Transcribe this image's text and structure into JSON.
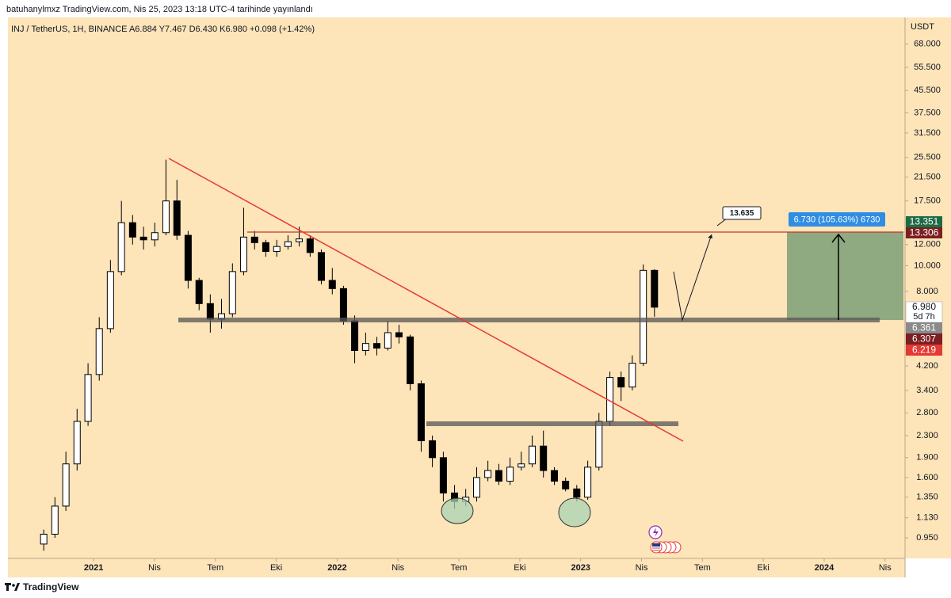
{
  "header": "batuhanylmxz TradingView.com, Nis 25, 2023 13:18 UTC-4 tarihinde yayınlandı",
  "footer": "TradingView",
  "chart_data": {
    "type": "candlestick",
    "title": "INJ / TetherUS, 1H, BINANCE  A6.884  Y7.467  D6.430  K6.980  +0.098 (+1.42%)",
    "currency": "USDT",
    "log_scale": true,
    "up_color": "#ffffff",
    "down_color": "#000000",
    "x": [
      2020.795,
      2020.841,
      2020.886,
      2020.932,
      2020.977,
      2021.023,
      2021.069,
      2021.114,
      2021.16,
      2021.205,
      2021.251,
      2021.297,
      2021.342,
      2021.388,
      2021.433,
      2021.479,
      2021.525,
      2021.57,
      2021.616,
      2021.661,
      2021.707,
      2021.752,
      2021.798,
      2021.844,
      2021.889,
      2021.935,
      2021.98,
      2022.026,
      2022.072,
      2022.117,
      2022.163,
      2022.208,
      2022.254,
      2022.3,
      2022.345,
      2022.391,
      2022.436,
      2022.482,
      2022.528,
      2022.573,
      2022.619,
      2022.664,
      2022.71,
      2022.756,
      2022.801,
      2022.847,
      2022.892,
      2022.938,
      2022.984,
      2023.029,
      2023.075,
      2023.12,
      2023.166,
      2023.212,
      2023.257,
      2023.303
    ],
    "open": [
      0.9,
      0.98,
      1.25,
      1.8,
      2.6,
      3.9,
      5.8,
      9.5,
      14.5,
      12.8,
      12.5,
      13.3,
      17.5,
      13.0,
      8.8,
      7.2,
      6.3,
      6.6,
      9.5,
      12.8,
      12.2,
      11.3,
      11.8,
      12.3,
      12.6,
      11.2,
      8.8,
      8.2,
      6.2,
      4.8,
      5.1,
      4.9,
      5.6,
      5.4,
      3.6,
      2.2,
      1.9,
      1.4,
      1.3,
      1.35,
      1.6,
      1.7,
      1.55,
      1.75,
      1.8,
      2.1,
      1.7,
      1.55,
      1.45,
      1.35,
      1.75,
      2.6,
      3.8,
      3.5,
      4.3,
      9.6
    ],
    "high": [
      1.02,
      1.35,
      2.0,
      2.9,
      4.3,
      6.4,
      10.5,
      17.5,
      15.5,
      14.0,
      14.5,
      25.0,
      21.0,
      13.5,
      9.0,
      7.8,
      7.5,
      10.2,
      16.5,
      13.5,
      12.5,
      12.5,
      13.0,
      14.0,
      13.0,
      11.5,
      9.8,
      8.4,
      6.5,
      5.6,
      5.4,
      6.2,
      6.0,
      5.5,
      3.7,
      2.3,
      2.0,
      1.5,
      1.45,
      1.75,
      1.85,
      1.8,
      1.9,
      2.0,
      2.3,
      2.4,
      1.75,
      1.6,
      1.5,
      1.85,
      2.8,
      4.0,
      4.0,
      4.6,
      10.1,
      9.7
    ],
    "low": [
      0.85,
      0.95,
      1.2,
      1.7,
      2.5,
      3.7,
      5.6,
      9.2,
      12.0,
      11.5,
      11.8,
      13.0,
      12.5,
      8.2,
      6.8,
      5.6,
      5.8,
      6.4,
      9.2,
      11.5,
      10.8,
      10.8,
      11.5,
      11.8,
      10.8,
      8.5,
      7.8,
      6.0,
      4.3,
      4.6,
      4.6,
      4.8,
      5.1,
      3.4,
      2.0,
      1.75,
      1.3,
      1.22,
      1.25,
      1.3,
      1.55,
      1.5,
      1.5,
      1.7,
      1.75,
      1.6,
      1.5,
      1.42,
      1.3,
      1.32,
      1.7,
      2.5,
      3.1,
      3.4,
      4.2,
      6.43
    ],
    "close": [
      0.98,
      1.25,
      1.8,
      2.6,
      3.9,
      5.8,
      9.5,
      14.5,
      12.8,
      12.5,
      13.3,
      17.5,
      13.0,
      8.8,
      7.2,
      6.3,
      6.6,
      9.5,
      12.8,
      12.2,
      11.3,
      11.8,
      12.3,
      12.6,
      11.2,
      8.8,
      8.2,
      6.2,
      4.8,
      5.1,
      4.9,
      5.6,
      5.4,
      3.6,
      2.2,
      1.9,
      1.4,
      1.3,
      1.35,
      1.6,
      1.7,
      1.55,
      1.75,
      1.8,
      2.1,
      1.7,
      1.55,
      1.45,
      1.35,
      1.75,
      2.6,
      3.8,
      3.5,
      4.3,
      9.6,
      6.98
    ],
    "xlim": [
      2020.648,
      2024.332
    ],
    "xticks": [
      2021,
      {
        "value": 2021.25,
        "label": "Nis"
      },
      {
        "value": 2021.5,
        "label": "Tem"
      },
      {
        "value": 2021.75,
        "label": "Eki"
      },
      2022,
      {
        "value": 2022.25,
        "label": "Nis"
      },
      {
        "value": 2022.5,
        "label": "Tem"
      },
      {
        "value": 2022.75,
        "label": "Eki"
      },
      2023,
      {
        "value": 2023.25,
        "label": "Nis"
      },
      {
        "value": 2023.5,
        "label": "Tem"
      },
      {
        "value": 2023.75,
        "label": "Eki"
      },
      2024,
      {
        "value": 2024.25,
        "label": "Nis"
      }
    ],
    "ylim": [
      0.795,
      81
    ],
    "yticks": [
      {
        "value": 68,
        "label": "68.000"
      },
      {
        "value": 55.5,
        "label": "55.500"
      },
      {
        "value": 45.5,
        "label": "45.500"
      },
      {
        "value": 37.5,
        "label": "37.500"
      },
      {
        "value": 31.5,
        "label": "31.500"
      },
      {
        "value": 25.5,
        "label": "25.500"
      },
      {
        "value": 21.5,
        "label": "21.500"
      },
      {
        "value": 17.5,
        "label": "17.500"
      },
      {
        "value": 12,
        "label": "12.000"
      },
      {
        "value": 10,
        "label": "10.000"
      },
      {
        "value": 8,
        "label": "8.000"
      },
      {
        "value": 4.2,
        "label": "4.200"
      },
      {
        "value": 3.4,
        "label": "3.400"
      },
      {
        "value": 2.8,
        "label": "2.800"
      },
      {
        "value": 2.3,
        "label": "2.300"
      },
      {
        "value": 1.9,
        "label": "1.900"
      },
      {
        "value": 1.6,
        "label": "1.600"
      },
      {
        "value": 1.35,
        "label": "1.350"
      },
      {
        "value": 1.13,
        "label": "1.130"
      },
      {
        "value": 0.95,
        "label": "0.950"
      }
    ],
    "annotations": [
      "13.635",
      "6.730 (105.63%) 6730"
    ],
    "price_labels": [
      "13.351",
      "13.306",
      "6.980",
      "5d 7h",
      "6.361",
      "6.307",
      "6.219"
    ]
  }
}
